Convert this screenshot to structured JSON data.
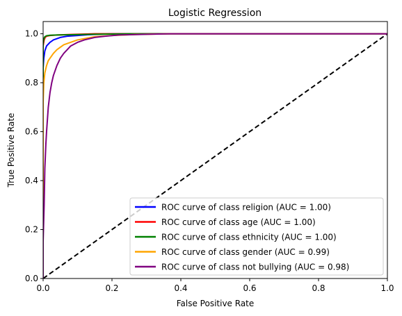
{
  "chart_data": {
    "type": "line",
    "title": "Logistic Regression",
    "xlabel": "False Positive Rate",
    "ylabel": "True Positive Rate",
    "xlim": [
      0.0,
      1.0
    ],
    "ylim": [
      0.0,
      1.05
    ],
    "xticks": [
      "0.0",
      "0.2",
      "0.4",
      "0.6",
      "0.8",
      "1.0"
    ],
    "yticks": [
      "0.0",
      "0.2",
      "0.4",
      "0.6",
      "0.8",
      "1.0"
    ],
    "grid": false,
    "legend_position": "lower-right",
    "diagonal": {
      "x": [
        0,
        1
      ],
      "y": [
        0,
        1
      ],
      "color": "#000000",
      "style": "dashed"
    },
    "series": [
      {
        "name": "ROC curve of class religion (AUC = 1.00)",
        "color": "#0000ff",
        "x": [
          0,
          0,
          0.002,
          0.005,
          0.01,
          0.02,
          0.03,
          0.05,
          0.07,
          0.1,
          0.13,
          0.16,
          0.2,
          0.3,
          1.0
        ],
        "y": [
          0,
          0.86,
          0.9,
          0.93,
          0.95,
          0.965,
          0.975,
          0.985,
          0.99,
          0.993,
          0.996,
          0.998,
          1.0,
          1.0,
          1.0
        ]
      },
      {
        "name": "ROC curve of class age (AUC = 1.00)",
        "color": "#ff0000",
        "x": [
          0,
          0,
          0.003,
          0.006,
          0.01,
          0.02,
          0.04,
          0.08,
          0.15,
          1.0
        ],
        "y": [
          0,
          0.95,
          0.975,
          0.985,
          0.99,
          0.993,
          0.995,
          0.997,
          1.0,
          1.0
        ]
      },
      {
        "name": "ROC curve of class ethnicity (AUC = 1.00)",
        "color": "#008000",
        "x": [
          0,
          0,
          0.002,
          0.005,
          0.01,
          0.02,
          0.04,
          0.08,
          0.15,
          0.25,
          1.0
        ],
        "y": [
          0,
          0.96,
          0.98,
          0.988,
          0.992,
          0.994,
          0.995,
          0.996,
          0.998,
          1.0,
          1.0
        ]
      },
      {
        "name": "ROC curve of class gender (AUC = 0.99)",
        "color": "#ffa500",
        "x": [
          0,
          0,
          0.002,
          0.005,
          0.01,
          0.015,
          0.02,
          0.03,
          0.04,
          0.05,
          0.06,
          0.08,
          0.1,
          0.12,
          0.15,
          0.2,
          0.27,
          0.37,
          1.0
        ],
        "y": [
          0,
          0.72,
          0.8,
          0.84,
          0.87,
          0.89,
          0.9,
          0.92,
          0.935,
          0.945,
          0.955,
          0.965,
          0.975,
          0.98,
          0.988,
          0.993,
          0.997,
          1.0,
          1.0
        ]
      },
      {
        "name": "ROC curve of class not bullying (AUC = 0.98)",
        "color": "#800080",
        "x": [
          0,
          0,
          0.003,
          0.005,
          0.008,
          0.01,
          0.015,
          0.02,
          0.025,
          0.03,
          0.04,
          0.05,
          0.06,
          0.07,
          0.08,
          0.1,
          0.12,
          0.15,
          0.18,
          0.22,
          0.3,
          0.37,
          1.0
        ],
        "y": [
          0,
          0.15,
          0.3,
          0.45,
          0.55,
          0.6,
          0.7,
          0.76,
          0.8,
          0.83,
          0.87,
          0.9,
          0.92,
          0.935,
          0.95,
          0.965,
          0.975,
          0.985,
          0.99,
          0.995,
          0.998,
          1.0,
          1.0
        ]
      }
    ]
  }
}
